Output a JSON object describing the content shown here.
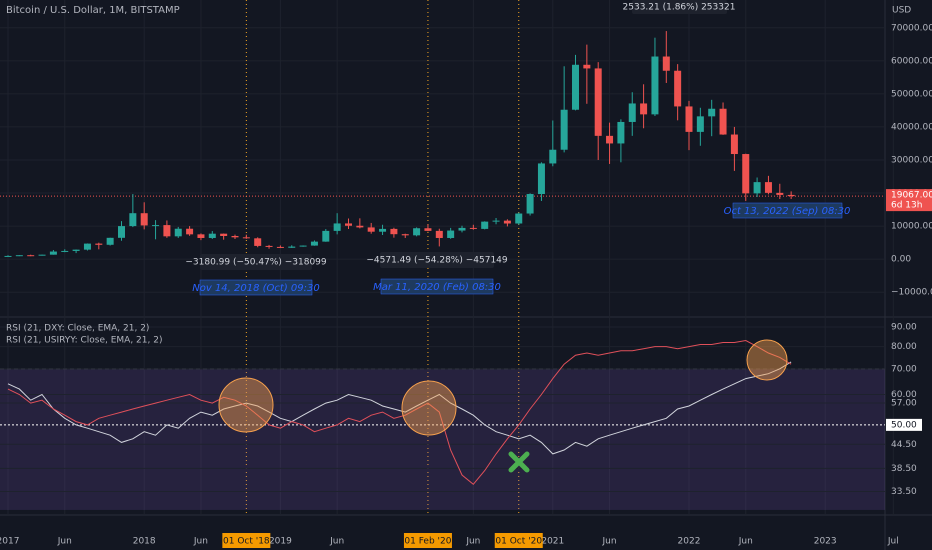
{
  "labels": {
    "symbol": "Bitcoin / U.S. Dollar, 1M, BITSTAMP",
    "currency": "USD",
    "top_measure": "2533.21 (1.86%) 253321",
    "measure_1": "−3180.99 (−50.47%) −318099",
    "date_1": "Nov 14, 2018 (Oct) 09:30",
    "measure_2": "−4571.49 (−54.28%) −457149",
    "date_2": "Mar 11, 2020 (Feb) 08:30",
    "date_3": "Oct 13, 2022 (Sep) 08:30",
    "last_price": "19067.00",
    "countdown": "6d 13h"
  },
  "chart_data": [
    {
      "type": "candlestick",
      "x": [
        "2017-01",
        "2017-02",
        "2017-03",
        "2017-04",
        "2017-05",
        "2017-06",
        "2017-07",
        "2017-08",
        "2017-09",
        "2017-10",
        "2017-11",
        "2017-12",
        "2018-01",
        "2018-02",
        "2018-03",
        "2018-04",
        "2018-05",
        "2018-06",
        "2018-07",
        "2018-08",
        "2018-09",
        "2018-10",
        "2018-11",
        "2018-12",
        "2019-01",
        "2019-02",
        "2019-03",
        "2019-04",
        "2019-05",
        "2019-06",
        "2019-07",
        "2019-08",
        "2019-09",
        "2019-10",
        "2019-11",
        "2019-12",
        "2020-01",
        "2020-02",
        "2020-03",
        "2020-04",
        "2020-05",
        "2020-06",
        "2020-07",
        "2020-08",
        "2020-09",
        "2020-10",
        "2020-11",
        "2020-12",
        "2021-01",
        "2021-02",
        "2021-03",
        "2021-04",
        "2021-05",
        "2021-06",
        "2021-07",
        "2021-08",
        "2021-09",
        "2021-10",
        "2021-11",
        "2021-12",
        "2022-01",
        "2022-02",
        "2022-03",
        "2022-04",
        "2022-05",
        "2022-06",
        "2022-07",
        "2022-08",
        "2022-09",
        "2022-10"
      ],
      "open": [
        963,
        970,
        1190,
        1080,
        1350,
        2300,
        2480,
        2870,
        4700,
        4340,
        6450,
        10000,
        13900,
        10200,
        10300,
        6900,
        9200,
        7500,
        6400,
        7700,
        7000,
        6600,
        6300,
        4000,
        3700,
        3440,
        3800,
        4100,
        5300,
        8550,
        10800,
        10100,
        9600,
        8300,
        9150,
        7550,
        7200,
        9350,
        8550,
        6400,
        8650,
        9450,
        9150,
        11350,
        11650,
        10780,
        13800,
        19700,
        28950,
        33100,
        45200,
        58800,
        57700,
        37300,
        35000,
        41500,
        47100,
        43800,
        61300,
        57000,
        46200,
        38500,
        43200,
        45500,
        37700,
        31800,
        19900,
        23300,
        20050,
        19430
      ],
      "high": [
        1190,
        1200,
        1350,
        1350,
        2760,
        2980,
        2920,
        4750,
        4980,
        6470,
        11500,
        19700,
        17200,
        11800,
        11700,
        9750,
        10000,
        7780,
        8500,
        7760,
        7400,
        7400,
        6600,
        4300,
        4150,
        4200,
        4150,
        5650,
        9100,
        13900,
        12300,
        12350,
        10950,
        10400,
        9500,
        7700,
        9600,
        10500,
        9200,
        9450,
        10100,
        10400,
        11450,
        12450,
        12050,
        14100,
        19900,
        29300,
        41950,
        58350,
        61800,
        64900,
        59600,
        41300,
        42300,
        50500,
        52900,
        67000,
        69000,
        59000,
        47900,
        45800,
        48200,
        47400,
        40000,
        31900,
        24700,
        25200,
        22800,
        20500
      ],
      "low": [
        750,
        920,
        890,
        1060,
        1350,
        2100,
        1830,
        2610,
        2970,
        4110,
        5550,
        9700,
        9000,
        6000,
        6450,
        6420,
        7050,
        5750,
        6100,
        5880,
        6100,
        6150,
        3600,
        3150,
        3350,
        3400,
        3750,
        4050,
        5250,
        7500,
        9100,
        9300,
        7700,
        7300,
        6500,
        6400,
        6900,
        8450,
        3850,
        6150,
        8100,
        8900,
        9000,
        10550,
        9900,
        10400,
        13200,
        17600,
        28100,
        32300,
        45000,
        47000,
        30000,
        28800,
        29300,
        37300,
        39600,
        43300,
        53300,
        42000,
        33000,
        34300,
        37200,
        37600,
        26700,
        17600,
        18800,
        19600,
        18200,
        18200
      ],
      "close": [
        970,
        1190,
        1080,
        1350,
        2300,
        2480,
        2870,
        4700,
        4340,
        6450,
        10000,
        13900,
        10200,
        10300,
        6900,
        9200,
        7500,
        6400,
        7700,
        7000,
        6600,
        6300,
        4000,
        3700,
        3440,
        3800,
        4100,
        5300,
        8550,
        10800,
        10100,
        9600,
        8300,
        9150,
        7550,
        7200,
        9350,
        8550,
        6400,
        8650,
        9450,
        9150,
        11350,
        11650,
        10780,
        13800,
        19700,
        28950,
        33100,
        45200,
        58800,
        57700,
        37300,
        35000,
        41500,
        47100,
        43800,
        61300,
        57000,
        46200,
        38500,
        43200,
        45500,
        37700,
        31800,
        19900,
        23300,
        20050,
        19430,
        19067
      ],
      "up_color": "#26a69a",
      "down_color": "#ef5350",
      "ylim": [
        -16900,
        78400
      ],
      "yticks": [
        {
          "value": 70000,
          "label": "70000.00"
        },
        {
          "value": 60000,
          "label": "60000.00"
        },
        {
          "value": 50000,
          "label": "50000.00"
        },
        {
          "value": 40000,
          "label": "40000.00"
        },
        {
          "value": 30000,
          "label": "30000.00"
        },
        {
          "value": 20000,
          "label": "20000.00"
        },
        {
          "value": 10000,
          "label": "10000.00"
        },
        {
          "value": 0,
          "label": "0.00"
        },
        {
          "value": -10000,
          "label": "−10000.00"
        }
      ],
      "xticks": [
        {
          "value": "2017-01",
          "label": "2017"
        },
        {
          "value": "2017-06",
          "label": "Jun"
        },
        {
          "value": "2018-01",
          "label": "2018"
        },
        {
          "value": "2018-06",
          "label": "Jun"
        },
        {
          "value": "2019-01",
          "label": "2019"
        },
        {
          "value": "2019-06",
          "label": "Jun"
        },
        {
          "value": "2020-06",
          "label": "Jun"
        },
        {
          "value": "2021-01",
          "label": "2021"
        },
        {
          "value": "2021-06",
          "label": "Jun"
        },
        {
          "value": "2022-01",
          "label": "2022"
        },
        {
          "value": "2022-06",
          "label": "Jun"
        },
        {
          "value": "2023-01",
          "label": "2023"
        },
        {
          "value": "2023-07",
          "label": "Jul"
        }
      ],
      "markers": [
        {
          "value": "2018-10",
          "label": "01 Oct '18"
        },
        {
          "value": "2020-02",
          "label": "01 Feb '20"
        },
        {
          "value": "2020-10",
          "label": "01 Oct '20"
        }
      ]
    },
    {
      "type": "line",
      "log_scale": true,
      "x": [
        "2017-01",
        "2017-02",
        "2017-03",
        "2017-04",
        "2017-05",
        "2017-06",
        "2017-07",
        "2017-08",
        "2017-09",
        "2017-10",
        "2017-11",
        "2017-12",
        "2018-01",
        "2018-02",
        "2018-03",
        "2018-04",
        "2018-05",
        "2018-06",
        "2018-07",
        "2018-08",
        "2018-09",
        "2018-10",
        "2018-11",
        "2018-12",
        "2019-01",
        "2019-02",
        "2019-03",
        "2019-04",
        "2019-05",
        "2019-06",
        "2019-07",
        "2019-08",
        "2019-09",
        "2019-10",
        "2019-11",
        "2019-12",
        "2020-01",
        "2020-02",
        "2020-03",
        "2020-04",
        "2020-05",
        "2020-06",
        "2020-07",
        "2020-08",
        "2020-09",
        "2020-10",
        "2020-11",
        "2020-12",
        "2021-01",
        "2021-02",
        "2021-03",
        "2021-04",
        "2021-05",
        "2021-06",
        "2021-07",
        "2021-08",
        "2021-09",
        "2021-10",
        "2021-11",
        "2021-12",
        "2022-01",
        "2022-02",
        "2022-03",
        "2022-04",
        "2022-05",
        "2022-06",
        "2022-07",
        "2022-08",
        "2022-09",
        "2022-10"
      ],
      "series": [
        {
          "name": "RSI (21, DXY: Close, EMA, 21, 2)",
          "color": "#d1d4dc",
          "values": [
            64,
            62,
            58,
            60,
            55,
            52,
            50,
            49,
            48,
            47,
            45,
            46,
            48,
            47,
            50,
            49,
            52,
            54,
            53,
            55,
            56,
            57,
            56,
            54,
            52,
            51,
            53,
            55,
            57,
            58,
            60,
            59,
            58,
            56,
            55,
            54,
            56,
            58,
            60,
            57,
            55,
            53,
            50,
            48,
            47,
            46,
            47,
            45,
            42,
            43,
            45,
            44,
            46,
            47,
            48,
            49,
            50,
            51,
            52,
            55,
            56,
            58,
            60,
            62,
            64,
            66,
            67,
            68,
            70,
            73
          ]
        },
        {
          "name": "RSI (21, USIRYY: Close, EMA, 21, 2)",
          "color": "#e0505a",
          "values": [
            62,
            60,
            57,
            58,
            55,
            53,
            51,
            50,
            52,
            53,
            54,
            55,
            56,
            57,
            58,
            59,
            60,
            58,
            57,
            59,
            58,
            56,
            53,
            50,
            49,
            51,
            50,
            48,
            49,
            50,
            52,
            51,
            53,
            54,
            52,
            53,
            55,
            57,
            54,
            43,
            37,
            35,
            38,
            42,
            46,
            50,
            55,
            60,
            66,
            72,
            76,
            77,
            76,
            77,
            78,
            78,
            79,
            80,
            80,
            79,
            80,
            81,
            81,
            82,
            82,
            83,
            80,
            77,
            75,
            72
          ]
        }
      ],
      "ylim": [
        29.1,
        95
      ],
      "yticks": [
        {
          "value": 90,
          "label": "90.00"
        },
        {
          "value": 80,
          "label": "80.00"
        },
        {
          "value": 70,
          "label": "70.00"
        },
        {
          "value": 60,
          "label": "60.00"
        },
        {
          "value": 57,
          "label": "57.00"
        },
        {
          "value": 50,
          "label": "50.00"
        },
        {
          "value": 44.5,
          "label": "44.50"
        },
        {
          "value": 38.5,
          "label": "38.50"
        },
        {
          "value": 33.5,
          "label": "33.50"
        }
      ],
      "band": [
        30,
        70
      ],
      "band_color": "#7e57c2"
    }
  ]
}
